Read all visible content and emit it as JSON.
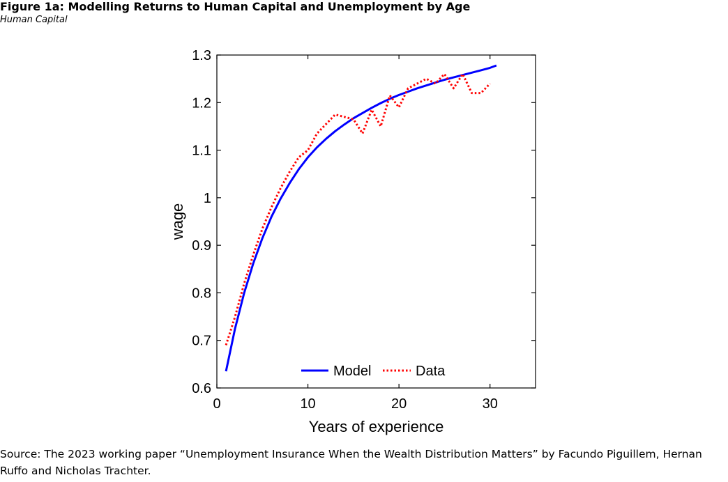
{
  "figure": {
    "title": "Figure 1a: Modelling Returns to Human Capital and Unemployment by Age",
    "subtitle": "Human Capital",
    "source": "Source: The 2023 working paper “Unemployment Insurance When the Wealth Distribution Matters” by Facundo Piguillem, Hernan Ruffo and Nicholas Trachter."
  },
  "colors": {
    "model": "#0000ff",
    "data": "#ff0000",
    "axis": "#000000"
  },
  "chart_data": {
    "type": "line",
    "title": "",
    "xlabel": "Years of experience",
    "ylabel": "wage",
    "xlim": [
      0,
      35
    ],
    "ylim": [
      0.6,
      1.3
    ],
    "xticks": [
      0,
      10,
      20,
      30
    ],
    "xtick_labels": [
      "0",
      "10",
      "20",
      "30"
    ],
    "yticks": [
      0.6,
      0.7,
      0.8,
      0.9,
      1.0,
      1.1,
      1.2,
      1.3
    ],
    "ytick_labels": [
      "0.6",
      "0.7",
      "0.8",
      "0.9",
      "1",
      "1.1",
      "1.2",
      "1.3"
    ],
    "grid": false,
    "legend_position": "bottom-center",
    "series": [
      {
        "name": "Model",
        "style": "solid",
        "x": [
          1,
          2,
          3,
          4,
          5,
          6,
          7,
          8,
          9,
          10,
          11,
          12,
          13,
          14,
          15,
          16,
          17,
          18,
          19,
          20,
          21,
          22,
          23,
          24,
          25,
          26,
          27,
          28,
          29,
          30,
          30.7
        ],
        "y": [
          0.635,
          0.725,
          0.8,
          0.862,
          0.915,
          0.96,
          0.998,
          1.031,
          1.06,
          1.085,
          1.106,
          1.124,
          1.14,
          1.154,
          1.167,
          1.178,
          1.189,
          1.199,
          1.208,
          1.216,
          1.223,
          1.23,
          1.236,
          1.242,
          1.248,
          1.253,
          1.258,
          1.263,
          1.268,
          1.273,
          1.278
        ]
      },
      {
        "name": "Data",
        "style": "dotted",
        "x": [
          1,
          2,
          3,
          4,
          5,
          6,
          7,
          8,
          9,
          10,
          11,
          12,
          13,
          14,
          15,
          16,
          17,
          18,
          19,
          20,
          21,
          22,
          23,
          24,
          25,
          26,
          27,
          28,
          29,
          30
        ],
        "y": [
          0.69,
          0.75,
          0.82,
          0.88,
          0.935,
          0.98,
          1.02,
          1.055,
          1.085,
          1.1,
          1.135,
          1.155,
          1.175,
          1.17,
          1.165,
          1.135,
          1.185,
          1.15,
          1.215,
          1.19,
          1.23,
          1.24,
          1.25,
          1.24,
          1.26,
          1.23,
          1.26,
          1.22,
          1.22,
          1.24
        ]
      }
    ]
  }
}
